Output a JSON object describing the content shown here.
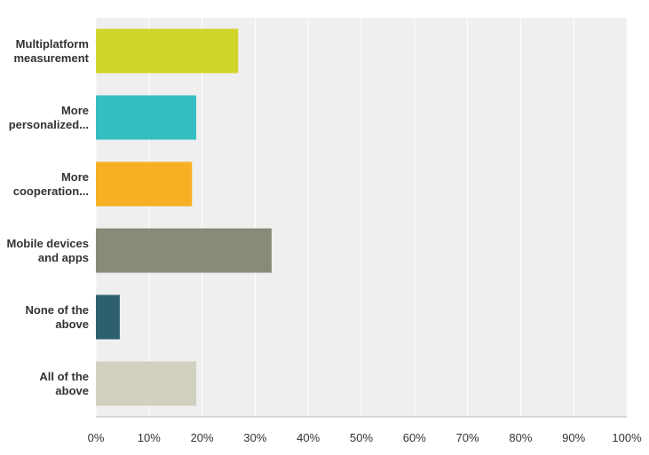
{
  "chart_data": {
    "type": "hbar",
    "categories": [
      "Multiplatform measurement",
      "More personalized...",
      "More cooperation...",
      "Mobile devices and apps",
      "None of the above",
      "All of the above"
    ],
    "values": [
      26.8,
      18.9,
      18.1,
      33.1,
      4.5,
      18.9
    ],
    "colors": [
      "#d0d52a",
      "#35bfc0",
      "#f7b023",
      "#898a79",
      "#2e5f6d",
      "#d1d0c1"
    ],
    "xlim": [
      0,
      100
    ],
    "xticks": [
      {
        "value": 0,
        "label": "0%"
      },
      {
        "value": 10,
        "label": "10%"
      },
      {
        "value": 20,
        "label": "20%"
      },
      {
        "value": 30,
        "label": "30%"
      },
      {
        "value": 40,
        "label": "40%"
      },
      {
        "value": 50,
        "label": "50%"
      },
      {
        "value": 60,
        "label": "60%"
      },
      {
        "value": 70,
        "label": "70%"
      },
      {
        "value": 80,
        "label": "80%"
      },
      {
        "value": 90,
        "label": "90%"
      },
      {
        "value": 100,
        "label": "100%"
      }
    ],
    "grid": true
  }
}
